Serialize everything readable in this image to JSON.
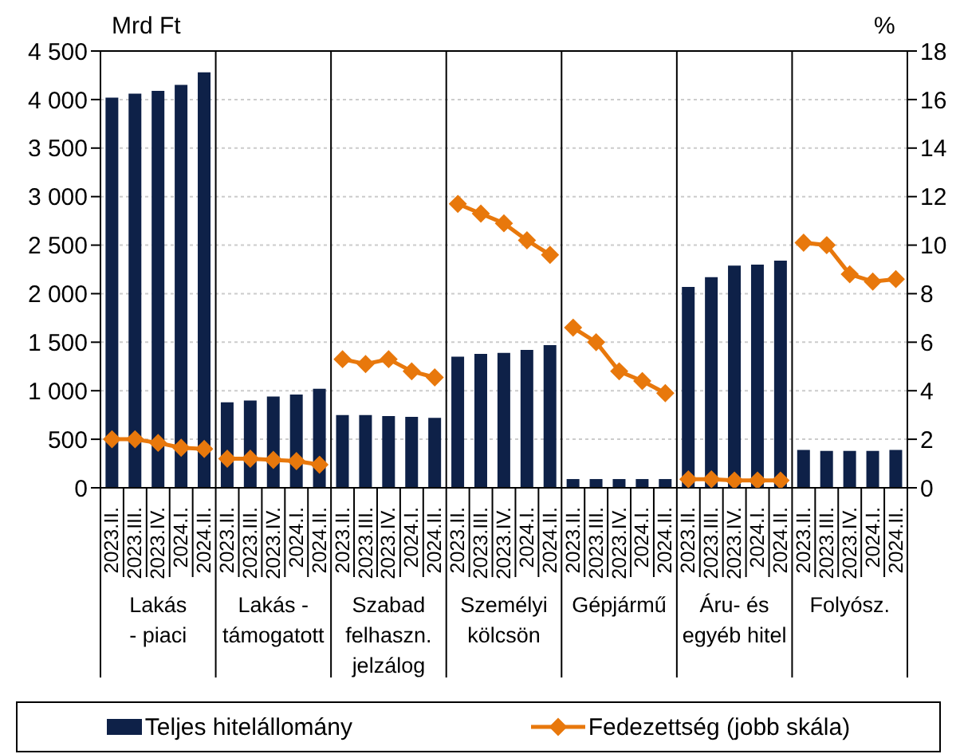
{
  "chart_data": {
    "type": "bar",
    "categories": [
      "2023.II.",
      "2023.III.",
      "2023.IV.",
      "2024.I.",
      "2024.II.",
      "2023.II.",
      "2023.III.",
      "2023.IV.",
      "2024.I.",
      "2024.II.",
      "2023.II.",
      "2023.III.",
      "2023.IV.",
      "2024.I.",
      "2024.II.",
      "2023.II.",
      "2023.III.",
      "2023.IV.",
      "2024.I.",
      "2024.II.",
      "2023.II.",
      "2023.III.",
      "2023.IV.",
      "2024.I.",
      "2024.II.",
      "2023.II.",
      "2023.III.",
      "2023.IV.",
      "2024.I.",
      "2024.II.",
      "2023.II.",
      "2023.III.",
      "2023.IV.",
      "2024.I.",
      "2024.II."
    ],
    "series": [
      {
        "name": "Teljes hitelállomány",
        "color": "#0e2148",
        "values": [
          4020,
          4060,
          4090,
          4150,
          4280,
          880,
          900,
          940,
          960,
          1020,
          750,
          750,
          740,
          730,
          720,
          1350,
          1380,
          1390,
          1420,
          1470,
          90,
          90,
          90,
          90,
          90,
          2070,
          2170,
          2290,
          2300,
          2340,
          390,
          380,
          380,
          380,
          390
        ]
      },
      {
        "name": "Fedezettség (jobb skála)",
        "type": "line",
        "axis": "y2",
        "color": "#e8780c",
        "values": [
          2.0,
          2.0,
          1.85,
          1.65,
          1.6,
          1.2,
          1.2,
          1.15,
          1.1,
          0.95,
          5.3,
          5.1,
          5.3,
          4.8,
          4.55,
          11.7,
          11.3,
          10.9,
          10.2,
          9.6,
          6.6,
          6.0,
          4.8,
          4.4,
          3.9,
          0.35,
          0.35,
          0.3,
          0.3,
          0.3,
          10.1,
          10.0,
          8.8,
          8.5,
          8.6
        ]
      }
    ],
    "ylabel": "Mrd Ft",
    "y2label": "%",
    "ylim": [
      0,
      4500
    ],
    "yticks": [
      0,
      500,
      {
        "value": 1000,
        "label": "1 000"
      },
      {
        "value": 1500,
        "label": "1 500"
      },
      {
        "value": 2000,
        "label": "2 000"
      },
      {
        "value": 2500,
        "label": "2 500"
      },
      {
        "value": 3000,
        "label": "3 000"
      },
      {
        "value": 3500,
        "label": "3 500"
      },
      {
        "value": 4000,
        "label": "4 000"
      },
      {
        "value": 4500,
        "label": "4 500"
      }
    ],
    "y2lim": [
      0,
      18
    ],
    "y2ticks": [
      0,
      2,
      4,
      6,
      8,
      10,
      12,
      14,
      16,
      18
    ],
    "grid": "y",
    "legend": "bottom",
    "marker": "diamond",
    "annotations": [
      "Lakás\n- piaci",
      "Lakás -\ntámogatott",
      "Szabad\nfelhaszn.\njelzálog",
      "Személyi\nkölcsön",
      "Gépjármű",
      "Áru- és\negyéb hitel",
      "Folyósz."
    ]
  }
}
